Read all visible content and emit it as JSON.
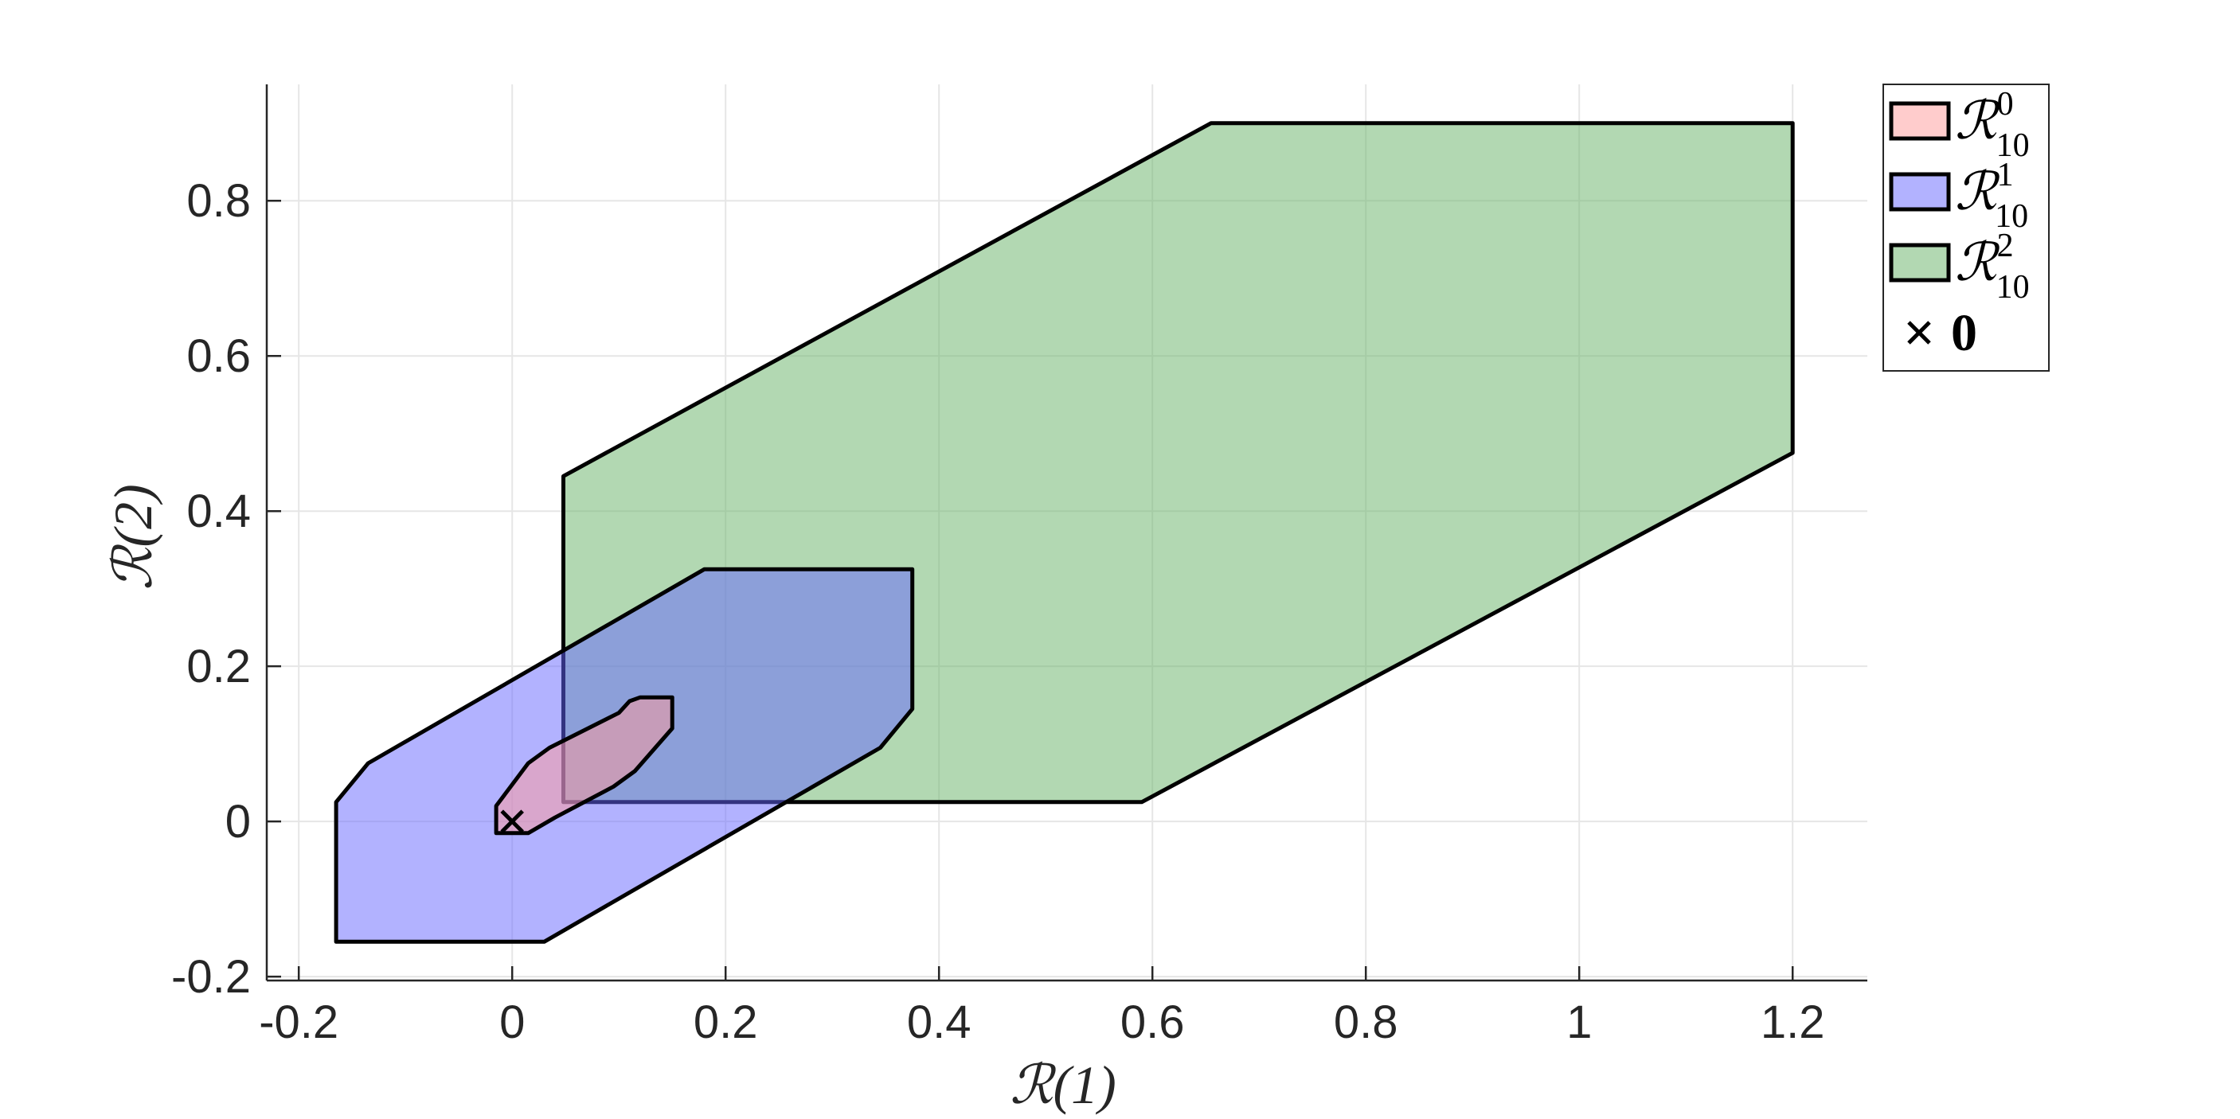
{
  "chart_data": {
    "type": "area",
    "title": "",
    "xlabel": "ℛ(1)",
    "ylabel": "ℛ(2)",
    "xlim": [
      -0.23,
      1.27
    ],
    "ylim": [
      -0.205,
      0.95
    ],
    "xticks": [
      -0.2,
      0,
      0.2,
      0.4,
      0.6,
      0.8,
      1,
      1.2
    ],
    "xtick_labels": [
      "-0.2",
      "0",
      "0.2",
      "0.4",
      "0.6",
      "0.8",
      "1",
      "1.2"
    ],
    "yticks": [
      -0.2,
      0,
      0.2,
      0.4,
      0.6,
      0.8
    ],
    "ytick_labels": [
      "-0.2",
      "0",
      "0.2",
      "0.4",
      "0.6",
      "0.8"
    ],
    "grid": true,
    "legend_position": "top-right-outside",
    "series": [
      {
        "name": "ℛ",
        "sub": "10",
        "sup": "0",
        "color": "#ff9999",
        "opacity": 0.5,
        "points": [
          [
            -0.015,
            0.02
          ],
          [
            0.015,
            0.075
          ],
          [
            0.035,
            0.095
          ],
          [
            0.1,
            0.14
          ],
          [
            0.11,
            0.155
          ],
          [
            0.12,
            0.16
          ],
          [
            0.15,
            0.16
          ],
          [
            0.15,
            0.12
          ],
          [
            0.115,
            0.065
          ],
          [
            0.095,
            0.045
          ],
          [
            0.04,
            0.005
          ],
          [
            0.015,
            -0.015
          ],
          [
            -0.015,
            -0.015
          ]
        ]
      },
      {
        "name": "ℛ",
        "sub": "10",
        "sup": "1",
        "color": "#6666ff",
        "opacity": 0.5,
        "points": [
          [
            -0.165,
            0.025
          ],
          [
            -0.135,
            0.075
          ],
          [
            0.18,
            0.325
          ],
          [
            0.375,
            0.325
          ],
          [
            0.375,
            0.145
          ],
          [
            0.345,
            0.095
          ],
          [
            0.03,
            -0.155
          ],
          [
            -0.165,
            -0.155
          ]
        ]
      },
      {
        "name": "ℛ",
        "sub": "10",
        "sup": "2",
        "color": "#66b266",
        "opacity": 0.5,
        "points": [
          [
            0.048,
            0.445
          ],
          [
            0.655,
            0.9
          ],
          [
            1.2,
            0.9
          ],
          [
            1.2,
            0.475
          ],
          [
            0.59,
            0.025
          ],
          [
            0.048,
            0.025
          ]
        ]
      }
    ],
    "marker": {
      "label": "0",
      "symbol": "×",
      "x": 0,
      "y": 0
    }
  }
}
